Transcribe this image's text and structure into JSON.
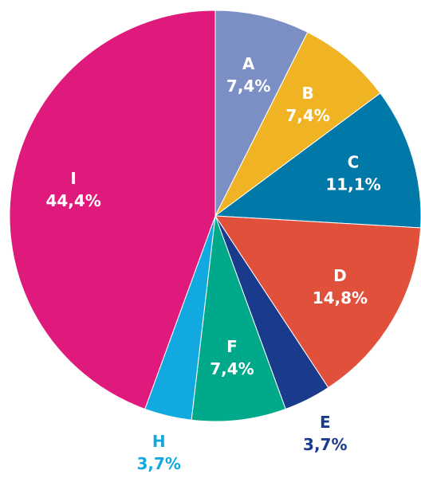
{
  "chart_data": {
    "type": "pie",
    "categories": [
      "A",
      "B",
      "C",
      "D",
      "E",
      "F",
      "H",
      "I"
    ],
    "values": [
      7.4,
      7.4,
      11.1,
      14.8,
      3.7,
      7.4,
      3.7,
      44.4
    ],
    "value_labels": [
      "7,4%",
      "7,4%",
      "11,1%",
      "14,8%",
      "3,7%",
      "7,4%",
      "3,7%",
      "44,4%"
    ],
    "colors": [
      "#7b8fc4",
      "#f0b323",
      "#0079a8",
      "#e0503a",
      "#1a3a8c",
      "#00a98a",
      "#12a8e0",
      "#e0197d"
    ]
  }
}
